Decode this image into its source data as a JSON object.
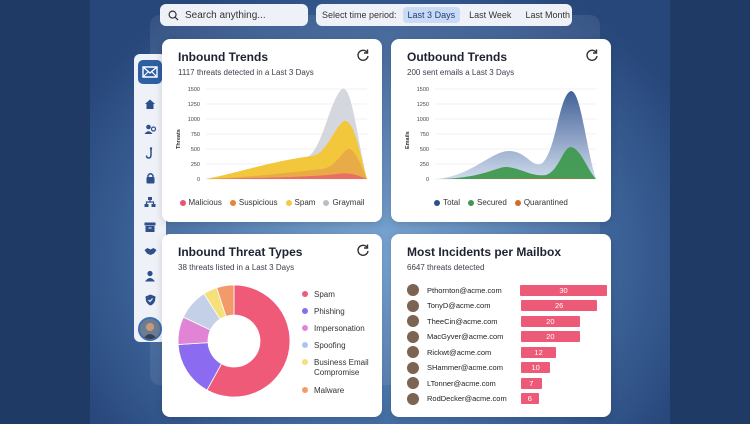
{
  "search": {
    "placeholder": "Search anything..."
  },
  "time_period": {
    "label": "Select time period:",
    "options": [
      {
        "label": "Last 3 Days",
        "active": true
      },
      {
        "label": "Last Week",
        "active": false
      },
      {
        "label": "Last Month",
        "active": false
      }
    ]
  },
  "sidebar": {
    "items": [
      {
        "icon": "home-icon"
      },
      {
        "icon": "users-icon"
      },
      {
        "icon": "hook-icon"
      },
      {
        "icon": "lock-icon"
      },
      {
        "icon": "network-icon"
      },
      {
        "icon": "archive-icon"
      },
      {
        "icon": "handshake-icon"
      },
      {
        "icon": "user-icon"
      },
      {
        "icon": "shield-icon"
      }
    ]
  },
  "inbound_trends": {
    "title": "Inbound Trends",
    "subtitle": "1117 threats detected in a Last 3 Days",
    "chart_data": {
      "type": "area",
      "ylabel": "Threats",
      "ylim": [
        0,
        1500
      ],
      "yticks": [
        "1500",
        "1250",
        "1000",
        "750",
        "500",
        "250",
        "0"
      ],
      "grid": true,
      "series": [
        {
          "name": "Malicious",
          "color": "#e9556f"
        },
        {
          "name": "Suspicious",
          "color": "#e8833a"
        },
        {
          "name": "Spam",
          "color": "#f5c842"
        },
        {
          "name": "Graymail",
          "color": "#b9bec6"
        }
      ]
    }
  },
  "outbound_trends": {
    "title": "Outbound Trends",
    "subtitle": "200 sent emails a Last 3 Days",
    "chart_data": {
      "type": "area",
      "ylabel": "Emails",
      "ylim": [
        0,
        1500
      ],
      "yticks": [
        "1500",
        "1250",
        "1000",
        "750",
        "500",
        "250",
        "0"
      ],
      "grid": true,
      "series": [
        {
          "name": "Total",
          "color": "#2d4f8c"
        },
        {
          "name": "Secured",
          "color": "#3f9a4f"
        },
        {
          "name": "Quarantined",
          "color": "#d06b2a"
        }
      ]
    }
  },
  "threat_types": {
    "title": "Inbound Threat Types",
    "subtitle": "38 threats listed in a Last 3 Days",
    "chart_data": {
      "type": "pie",
      "slices": [
        {
          "label": "Spam",
          "value": 58,
          "color": "#ee5a78"
        },
        {
          "label": "Phishing",
          "value": 16,
          "color": "#8b6cf0"
        },
        {
          "label": "Impersonation",
          "value": 8,
          "color": "#e184d6"
        },
        {
          "label": "Spoofing",
          "value": 9,
          "color": "#c4d0e8"
        },
        {
          "label": "Business Email Compromise",
          "value": 4,
          "color": "#f6e07a"
        },
        {
          "label": "Malware",
          "value": 5,
          "color": "#f29a6a"
        }
      ]
    },
    "legend": [
      {
        "label": "Spam",
        "color": "#ee5a78"
      },
      {
        "label": "Phishing",
        "color": "#8b6cf0"
      },
      {
        "label": "Impersonation",
        "color": "#e184d6"
      },
      {
        "label": "Spoofing",
        "color": "#a9c8f0"
      },
      {
        "label": "Business Email Compromise",
        "color": "#f6e07a"
      },
      {
        "label": "Malware",
        "color": "#f29a6a"
      }
    ]
  },
  "incidents": {
    "title": "Most Incidents per Mailbox",
    "subtitle": "6647 threats detected",
    "chart_data": {
      "type": "bar",
      "orientation": "horizontal",
      "color": "#ec5a78",
      "categories": [
        "Pthornton@acme.com",
        "TonyD@acme.com",
        "TheeCin@acme.com",
        "MacGyver@acme.com",
        "Rickwt@acme.com",
        "SHammer@acme.com",
        "LTonner@acme.com",
        "RodDecker@acme.com"
      ],
      "values": [
        30,
        26,
        20,
        20,
        12,
        10,
        7,
        6
      ]
    }
  }
}
